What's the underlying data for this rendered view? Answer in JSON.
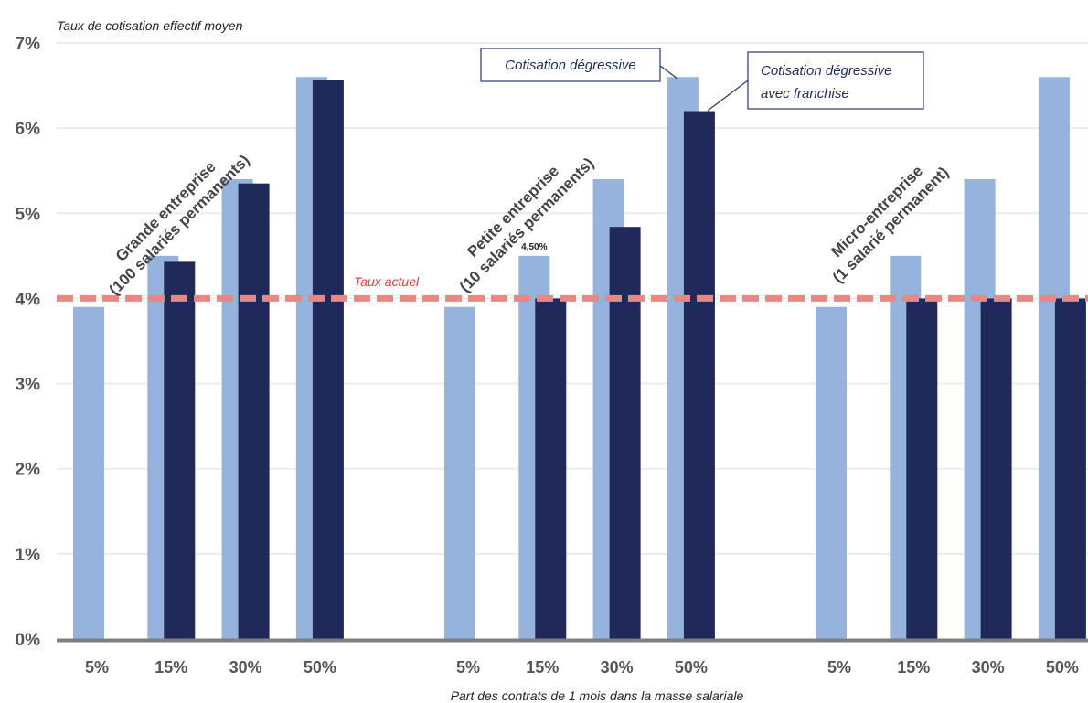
{
  "chart_data": {
    "type": "bar",
    "ylabel": "Taux de cotisation effectif moyen",
    "xlabel": "Part des contrats de 1 mois dans la masse salariale",
    "ylim": [
      0,
      7
    ],
    "yticks": [
      "0%",
      "1%",
      "2%",
      "3%",
      "4%",
      "5%",
      "6%",
      "7%"
    ],
    "categories": [
      "5%",
      "15%",
      "30%",
      "50%"
    ],
    "grid": true,
    "colors": {
      "light": "#95b3dd",
      "dark": "#1f2a5a",
      "reference": "#ee8585",
      "axis": "#7f7f7f",
      "grid": "#ececec"
    },
    "groups": [
      {
        "label": [
          "Grande entreprise",
          "(100 salariés permanents)"
        ],
        "series": [
          {
            "name": "Cotisation dégressive",
            "values": [
              3.9,
              4.5,
              5.4,
              6.6
            ]
          },
          {
            "name": "Cotisation dégressive avec franchise",
            "values": [
              null,
              4.43,
              5.35,
              6.56
            ]
          }
        ]
      },
      {
        "label": [
          "Petite entreprise",
          "(10 salariés permanents)"
        ],
        "series": [
          {
            "name": "Cotisation dégressive",
            "values": [
              3.9,
              4.5,
              5.4,
              6.6
            ]
          },
          {
            "name": "Cotisation dégressive avec franchise",
            "values": [
              null,
              4.0,
              4.84,
              6.2
            ]
          }
        ]
      },
      {
        "label": [
          "Micro-entreprise",
          "(1 salarié permanent)"
        ],
        "series": [
          {
            "name": "Cotisation dégressive",
            "values": [
              3.9,
              4.5,
              5.4,
              6.6
            ]
          },
          {
            "name": "Cotisation dégressive avec franchise",
            "values": [
              null,
              4.0,
              4.0,
              4.0
            ]
          }
        ]
      }
    ],
    "reference_line": {
      "label": "Taux actuel",
      "value": 4.0
    },
    "data_label": {
      "text": "4,50%",
      "group": 1,
      "category": 1,
      "series": 0
    },
    "legend_callouts": [
      {
        "lines": [
          "Cotisation dégressive"
        ],
        "series": 0
      },
      {
        "lines": [
          "Cotisation dégressive",
          "avec franchise"
        ],
        "series": 1
      }
    ]
  }
}
